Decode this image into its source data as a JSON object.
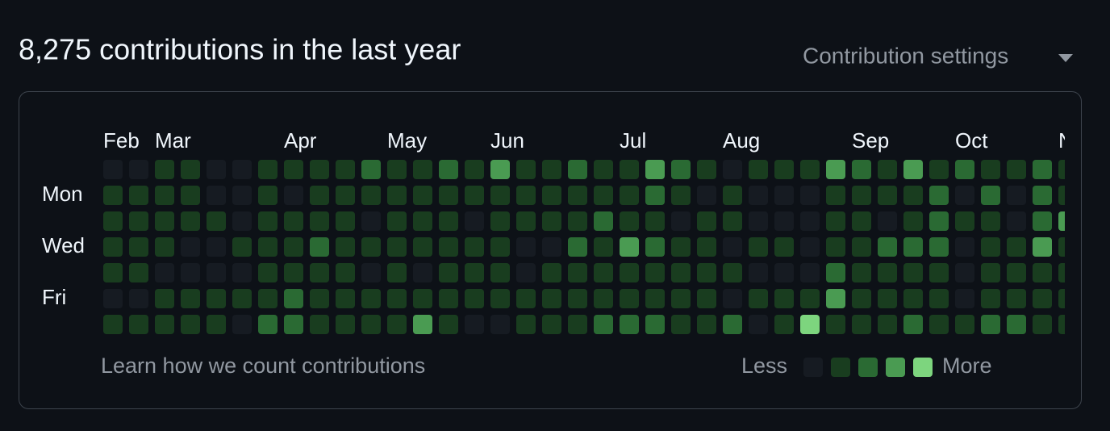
{
  "header": {
    "title": "8,275 contributions in the last year",
    "settings": "Contribution settings"
  },
  "graph": {
    "months": [
      "Feb",
      "Mar",
      "Apr",
      "May",
      "Jun",
      "Jul",
      "Aug",
      "Sep",
      "Oct",
      "Nov"
    ],
    "days": [
      "Mon",
      "Wed",
      "Fri"
    ],
    "level_colors": [
      "#161b22",
      "#193d1f",
      "#2a6a33",
      "#4a9b52",
      "#7dd57e"
    ],
    "rows": [
      [
        0,
        0,
        1,
        1,
        0,
        0,
        1,
        1,
        1,
        1,
        2,
        1,
        1,
        2,
        1,
        3,
        1,
        1,
        2,
        1,
        1,
        3,
        2,
        1,
        0,
        1,
        1,
        1,
        3,
        2,
        1,
        3,
        1,
        2,
        1,
        1,
        2,
        1
      ],
      [
        1,
        1,
        1,
        1,
        0,
        0,
        1,
        0,
        1,
        1,
        1,
        1,
        1,
        1,
        1,
        1,
        1,
        1,
        1,
        1,
        1,
        2,
        1,
        0,
        1,
        0,
        0,
        0,
        1,
        1,
        1,
        1,
        2,
        0,
        2,
        0,
        2,
        1
      ],
      [
        1,
        1,
        1,
        1,
        1,
        0,
        1,
        1,
        1,
        1,
        0,
        1,
        1,
        1,
        0,
        1,
        1,
        1,
        1,
        2,
        1,
        1,
        0,
        1,
        1,
        0,
        0,
        0,
        1,
        1,
        0,
        1,
        2,
        1,
        1,
        0,
        2,
        3
      ],
      [
        1,
        1,
        1,
        0,
        0,
        1,
        1,
        1,
        2,
        1,
        1,
        1,
        1,
        1,
        1,
        1,
        0,
        0,
        2,
        1,
        3,
        2,
        1,
        1,
        0,
        1,
        1,
        0,
        1,
        1,
        2,
        2,
        2,
        0,
        1,
        1,
        3,
        1
      ],
      [
        1,
        1,
        0,
        0,
        0,
        0,
        1,
        1,
        1,
        1,
        0,
        1,
        0,
        1,
        1,
        1,
        0,
        1,
        1,
        1,
        1,
        1,
        1,
        1,
        1,
        0,
        0,
        0,
        2,
        1,
        1,
        1,
        1,
        0,
        1,
        1,
        1,
        1
      ],
      [
        0,
        0,
        1,
        1,
        1,
        1,
        1,
        2,
        1,
        1,
        1,
        1,
        1,
        1,
        1,
        1,
        1,
        1,
        1,
        1,
        1,
        1,
        1,
        1,
        0,
        1,
        1,
        1,
        3,
        1,
        1,
        1,
        1,
        0,
        1,
        1,
        1,
        1
      ],
      [
        1,
        1,
        1,
        1,
        1,
        0,
        2,
        2,
        1,
        1,
        1,
        1,
        3,
        1,
        0,
        0,
        1,
        1,
        1,
        2,
        2,
        2,
        1,
        1,
        2,
        0,
        1,
        4,
        1,
        1,
        1,
        2,
        1,
        1,
        2,
        2,
        1,
        1
      ]
    ]
  },
  "footer": {
    "learn": "Learn how we count contributions",
    "less": "Less",
    "more": "More"
  }
}
